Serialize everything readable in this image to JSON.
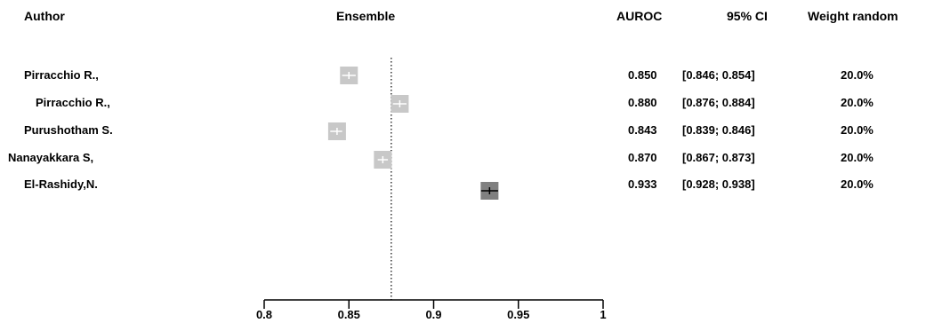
{
  "headers": {
    "author": "Author",
    "ensemble": "Ensemble",
    "auroc": "AUROC",
    "ci": "95% CI",
    "weight": "Weight random"
  },
  "rows": [
    {
      "author": "Pirracchio R.,",
      "auroc": "0.850",
      "ci": "[0.846; 0.854]",
      "weight": "20.0%"
    },
    {
      "author": "Pirracchio R.,",
      "auroc": "0.880",
      "ci": "[0.876; 0.884]",
      "weight": "20.0%"
    },
    {
      "author": "Purushotham S.",
      "auroc": "0.843",
      "ci": "[0.839; 0.846]",
      "weight": "20.0%"
    },
    {
      "author": "Nanayakkara S,",
      "auroc": "0.870",
      "ci": "[0.867; 0.873]",
      "weight": "20.0%"
    },
    {
      "author": "El-Rashidy,N.",
      "auroc": "0.933",
      "ci": "[0.928; 0.938]",
      "weight": "20.0%"
    }
  ],
  "chart_data": {
    "type": "forest",
    "x_ticks": [
      "0.8",
      "0.85",
      "0.9",
      "0.95",
      "1"
    ],
    "xlim": [
      0.8,
      1.0
    ],
    "reference_line": 0.875,
    "points": [
      {
        "estimate": 0.85,
        "lower": 0.846,
        "upper": 0.854,
        "weight": 20.0,
        "color": "#c8c8c8"
      },
      {
        "estimate": 0.88,
        "lower": 0.876,
        "upper": 0.884,
        "weight": 20.0,
        "color": "#c8c8c8"
      },
      {
        "estimate": 0.843,
        "lower": 0.839,
        "upper": 0.846,
        "weight": 20.0,
        "color": "#c8c8c8"
      },
      {
        "estimate": 0.87,
        "lower": 0.867,
        "upper": 0.873,
        "weight": 20.0,
        "color": "#c8c8c8"
      },
      {
        "estimate": 0.933,
        "lower": 0.928,
        "upper": 0.938,
        "weight": 20.0,
        "color": "#808080"
      }
    ]
  }
}
